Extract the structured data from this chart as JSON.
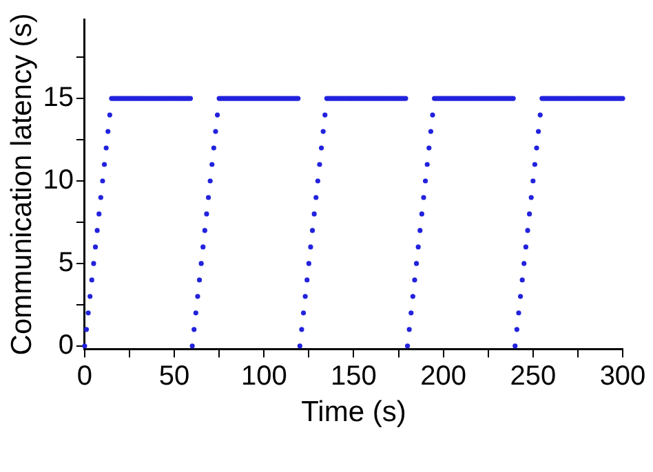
{
  "chart_data": {
    "type": "scatter",
    "xlabel": "Time (s)",
    "ylabel": "Communication latency (s)",
    "marker": "circle",
    "grid": false,
    "legend": false,
    "xlim": [
      0,
      300
    ],
    "ylim": [
      -0.2,
      19.8
    ],
    "xticks": [
      0,
      {
        "value": 25,
        "label": null
      },
      50,
      {
        "value": 75,
        "label": null
      },
      100,
      {
        "value": 125,
        "label": null
      },
      150,
      {
        "value": 175,
        "label": null
      },
      200,
      {
        "value": 225,
        "label": null
      },
      250,
      {
        "value": 275,
        "label": null
      },
      300
    ],
    "yticks": [
      0,
      {
        "value": 2.5,
        "label": null
      },
      5,
      {
        "value": 7.5,
        "label": null
      },
      10,
      {
        "value": 12.5,
        "label": null
      },
      15,
      {
        "value": 17.5,
        "label": null
      }
    ],
    "series": [
      {
        "color": "#2222dd",
        "x": [
          0,
          1,
          2,
          3,
          4,
          5,
          6,
          7,
          8,
          9,
          10,
          11,
          12,
          13,
          14,
          15,
          16,
          17,
          18,
          19,
          20,
          21,
          22,
          23,
          24,
          25,
          26,
          27,
          28,
          29,
          30,
          31,
          32,
          33,
          34,
          35,
          36,
          37,
          38,
          39,
          40,
          41,
          42,
          43,
          44,
          45,
          46,
          47,
          48,
          49,
          50,
          51,
          52,
          53,
          54,
          55,
          56,
          57,
          58,
          59,
          60,
          61,
          62,
          63,
          64,
          65,
          66,
          67,
          68,
          69,
          70,
          71,
          72,
          73,
          74,
          75,
          76,
          77,
          78,
          79,
          80,
          81,
          82,
          83,
          84,
          85,
          86,
          87,
          88,
          89,
          90,
          91,
          92,
          93,
          94,
          95,
          96,
          97,
          98,
          99,
          100,
          101,
          102,
          103,
          104,
          105,
          106,
          107,
          108,
          109,
          110,
          111,
          112,
          113,
          114,
          115,
          116,
          117,
          118,
          119,
          120,
          121,
          122,
          123,
          124,
          125,
          126,
          127,
          128,
          129,
          130,
          131,
          132,
          133,
          134,
          135,
          136,
          137,
          138,
          139,
          140,
          141,
          142,
          143,
          144,
          145,
          146,
          147,
          148,
          149,
          150,
          151,
          152,
          153,
          154,
          155,
          156,
          157,
          158,
          159,
          160,
          161,
          162,
          163,
          164,
          165,
          166,
          167,
          168,
          169,
          170,
          171,
          172,
          173,
          174,
          175,
          176,
          177,
          178,
          179,
          180,
          181,
          182,
          183,
          184,
          185,
          186,
          187,
          188,
          189,
          190,
          191,
          192,
          193,
          194,
          195,
          196,
          197,
          198,
          199,
          200,
          201,
          202,
          203,
          204,
          205,
          206,
          207,
          208,
          209,
          210,
          211,
          212,
          213,
          214,
          215,
          216,
          217,
          218,
          219,
          220,
          221,
          222,
          223,
          224,
          225,
          226,
          227,
          228,
          229,
          230,
          231,
          232,
          233,
          234,
          235,
          236,
          237,
          238,
          239,
          240,
          241,
          242,
          243,
          244,
          245,
          246,
          247,
          248,
          249,
          250,
          251,
          252,
          253,
          254,
          255,
          256,
          257,
          258,
          259,
          260,
          261,
          262,
          263,
          264,
          265,
          266,
          267,
          268,
          269,
          270,
          271,
          272,
          273,
          274,
          275,
          276,
          277,
          278,
          279,
          280,
          281,
          282,
          283,
          284,
          285,
          286,
          287,
          288,
          289,
          290,
          291,
          292,
          293,
          294,
          295,
          296,
          297,
          298,
          299,
          300
        ],
        "values": [
          0,
          1,
          2,
          3,
          4,
          5,
          6,
          7,
          8,
          9,
          10,
          11,
          12,
          13,
          14,
          15,
          15,
          15,
          15,
          15,
          15,
          15,
          15,
          15,
          15,
          15,
          15,
          15,
          15,
          15,
          15,
          15,
          15,
          15,
          15,
          15,
          15,
          15,
          15,
          15,
          15,
          15,
          15,
          15,
          15,
          15,
          15,
          15,
          15,
          15,
          15,
          15,
          15,
          15,
          15,
          15,
          15,
          15,
          15,
          15,
          0,
          1,
          2,
          3,
          4,
          5,
          6,
          7,
          8,
          9,
          10,
          11,
          12,
          13,
          14,
          15,
          15,
          15,
          15,
          15,
          15,
          15,
          15,
          15,
          15,
          15,
          15,
          15,
          15,
          15,
          15,
          15,
          15,
          15,
          15,
          15,
          15,
          15,
          15,
          15,
          15,
          15,
          15,
          15,
          15,
          15,
          15,
          15,
          15,
          15,
          15,
          15,
          15,
          15,
          15,
          15,
          15,
          15,
          15,
          15,
          0,
          1,
          2,
          3,
          4,
          5,
          6,
          7,
          8,
          9,
          10,
          11,
          12,
          13,
          14,
          15,
          15,
          15,
          15,
          15,
          15,
          15,
          15,
          15,
          15,
          15,
          15,
          15,
          15,
          15,
          15,
          15,
          15,
          15,
          15,
          15,
          15,
          15,
          15,
          15,
          15,
          15,
          15,
          15,
          15,
          15,
          15,
          15,
          15,
          15,
          15,
          15,
          15,
          15,
          15,
          15,
          15,
          15,
          15,
          15,
          0,
          1,
          2,
          3,
          4,
          5,
          6,
          7,
          8,
          9,
          10,
          11,
          12,
          13,
          14,
          15,
          15,
          15,
          15,
          15,
          15,
          15,
          15,
          15,
          15,
          15,
          15,
          15,
          15,
          15,
          15,
          15,
          15,
          15,
          15,
          15,
          15,
          15,
          15,
          15,
          15,
          15,
          15,
          15,
          15,
          15,
          15,
          15,
          15,
          15,
          15,
          15,
          15,
          15,
          15,
          15,
          15,
          15,
          15,
          15,
          0,
          1,
          2,
          3,
          4,
          5,
          6,
          7,
          8,
          9,
          10,
          11,
          12,
          13,
          14,
          15,
          15,
          15,
          15,
          15,
          15,
          15,
          15,
          15,
          15,
          15,
          15,
          15,
          15,
          15,
          15,
          15,
          15,
          15,
          15,
          15,
          15,
          15,
          15,
          15,
          15,
          15,
          15,
          15,
          15,
          15,
          15,
          15,
          15,
          15,
          15,
          15,
          15,
          15,
          15,
          15,
          15,
          15,
          15,
          15,
          15
        ]
      }
    ]
  }
}
